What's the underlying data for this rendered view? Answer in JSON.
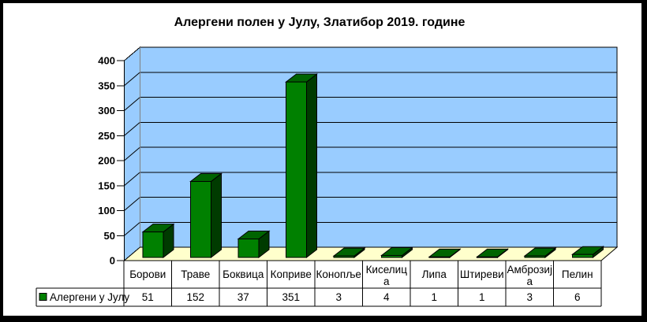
{
  "title": "Алергени полен у Јулу, Златибор 2019. године",
  "legend": {
    "label": "Алергени у Јулу",
    "marker_color": "#008000"
  },
  "colors": {
    "frame": "#000000",
    "page_background": "#ffffff",
    "wall": "#99CCFF",
    "floor": "#FFFFCC",
    "bar_front": "#008000",
    "bar_top": "#006400",
    "bar_side": "#003B00",
    "grid_line": "#000000",
    "wall_corner_line": "#808080",
    "table_border": "#000000",
    "text": "#000000"
  },
  "chart_data": {
    "type": "bar",
    "style": "3d-column",
    "title": "Алергени полен у Јулу, Златибор 2019. године",
    "categories": [
      "Борови",
      "Траве",
      "Боквица",
      "Коприве",
      "Конопље",
      "Киселица",
      "Липа",
      "Штиреви",
      "Амброзија",
      "Пелин"
    ],
    "category_label_lines": [
      [
        "Борови"
      ],
      [
        "Траве"
      ],
      [
        "Боквица"
      ],
      [
        "Коприве"
      ],
      [
        "Конопље"
      ],
      [
        "Киселиц",
        "а"
      ],
      [
        "Липа"
      ],
      [
        "Штиреви"
      ],
      [
        "Амброзиј",
        "а"
      ],
      [
        "Пелин"
      ]
    ],
    "series": [
      {
        "name": "Алергени у Јулу",
        "values": [
          51,
          152,
          37,
          351,
          3,
          4,
          1,
          1,
          3,
          6
        ]
      }
    ],
    "xlabel": "",
    "ylabel": "",
    "ylim": [
      0,
      400
    ],
    "yticks": [
      0,
      50,
      100,
      150,
      200,
      250,
      300,
      350,
      400
    ],
    "grid": true,
    "legend_position": "bottom-left",
    "data_table_shown": true
  }
}
